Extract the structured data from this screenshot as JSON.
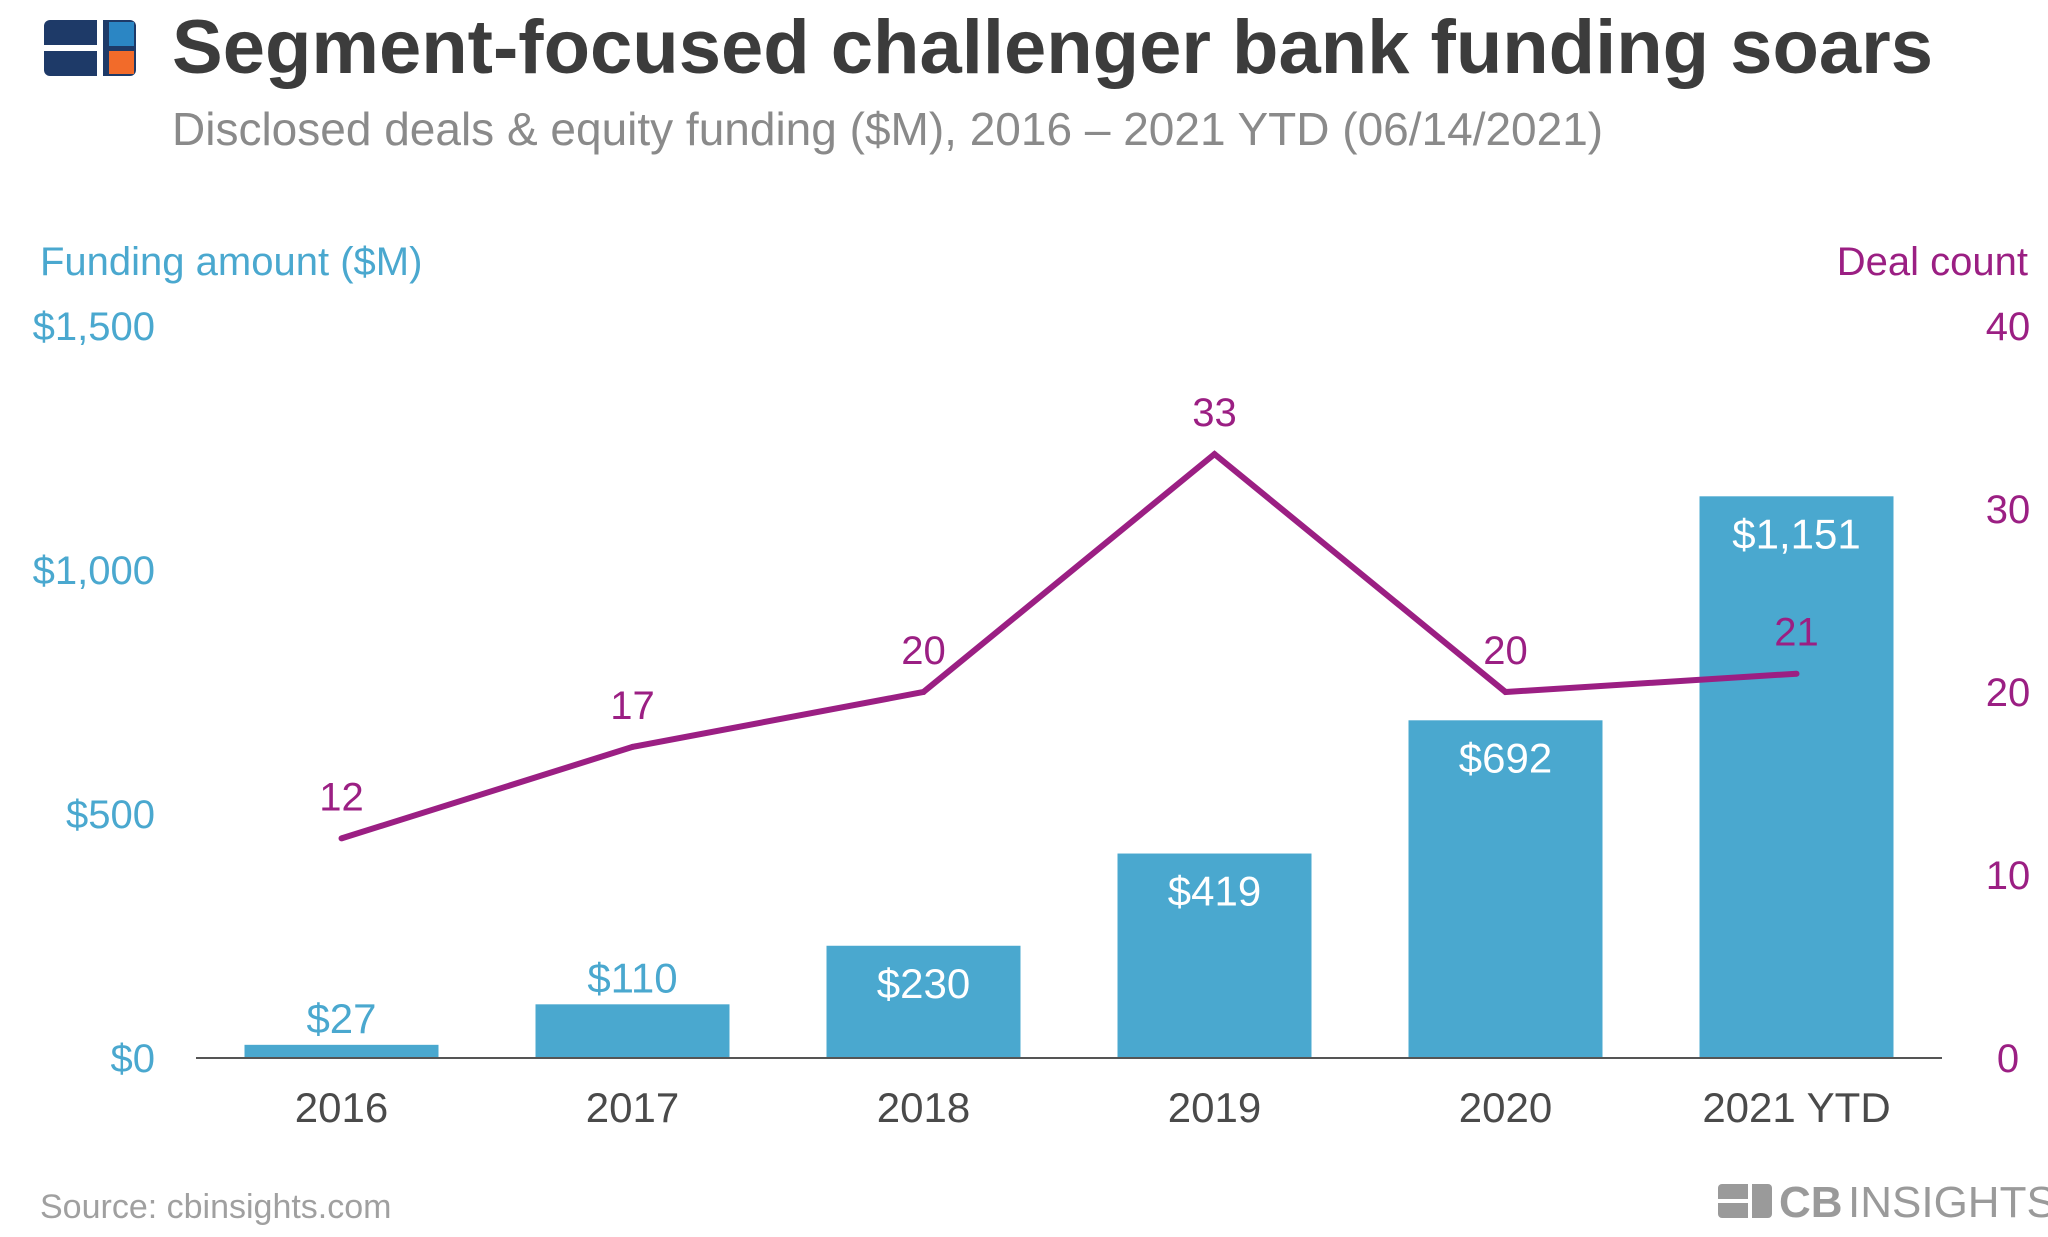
{
  "header": {
    "title": "Segment-focused challenger bank funding soars",
    "subtitle": "Disclosed deals & equity funding ($M), 2016 – 2021 YTD (06/14/2021)"
  },
  "footer": {
    "source": "Source: cbinsights.com",
    "brand_cb": "CB",
    "brand_insights": "INSIGHTS"
  },
  "colors": {
    "bar": "#4aa8cf",
    "line": "#9b1f83",
    "logo_navy": "#1e3a68",
    "logo_blue": "#2b86c4",
    "logo_orange": "#f26b2a"
  },
  "chart_data": {
    "type": "bar",
    "categories": [
      "2016",
      "2017",
      "2018",
      "2019",
      "2020",
      "2021 YTD"
    ],
    "series": [
      {
        "name": "Funding amount ($M)",
        "type": "bar",
        "axis": "left",
        "values": [
          27,
          110,
          230,
          419,
          692,
          1151
        ],
        "labels": [
          "$27",
          "$110",
          "$230",
          "$419",
          "$692",
          "$1,151"
        ]
      },
      {
        "name": "Deal count",
        "type": "line",
        "axis": "right",
        "values": [
          12,
          17,
          20,
          33,
          20,
          21
        ],
        "labels": [
          "12",
          "17",
          "20",
          "33",
          "20",
          "21"
        ]
      }
    ],
    "y_left": {
      "label": "Funding amount ($M)",
      "lim": [
        0,
        1500
      ],
      "ticks": [
        0,
        500,
        1000,
        1500
      ],
      "tick_labels": [
        "$0",
        "$500",
        "$1,000",
        "$1,500"
      ]
    },
    "y_right": {
      "label": "Deal count",
      "lim": [
        0,
        40
      ],
      "ticks": [
        0,
        10,
        20,
        30,
        40
      ],
      "tick_labels": [
        "0",
        "10",
        "20",
        "30",
        "40"
      ]
    },
    "grid": false,
    "legend": "none"
  }
}
